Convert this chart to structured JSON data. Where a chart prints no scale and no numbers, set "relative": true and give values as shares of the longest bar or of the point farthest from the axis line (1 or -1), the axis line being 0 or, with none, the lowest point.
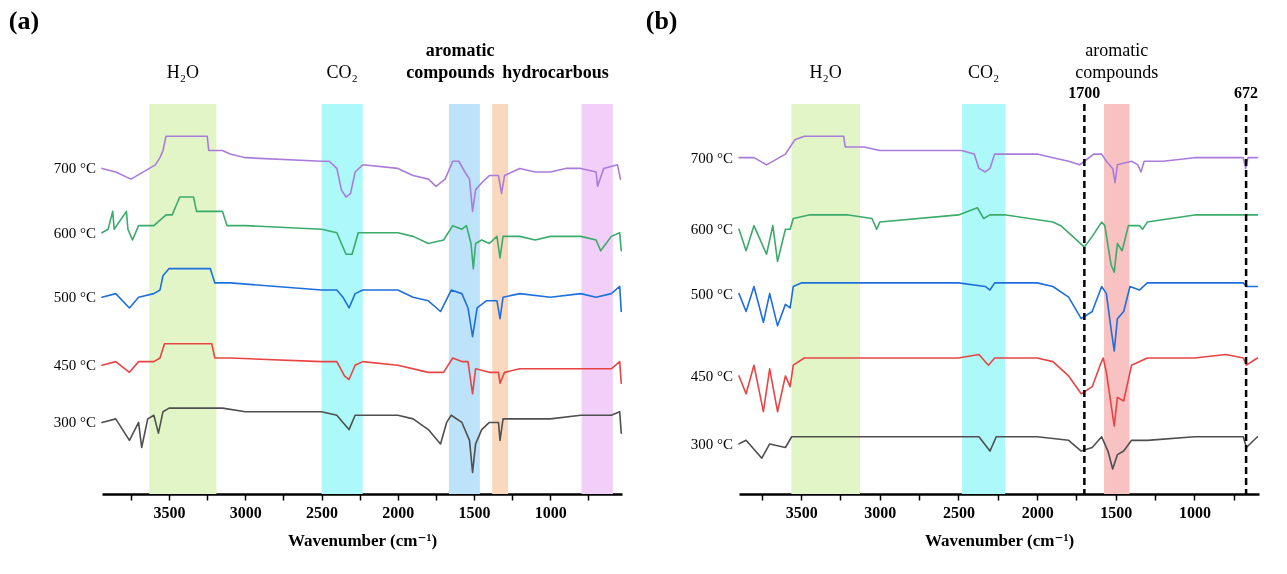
{
  "chart_data": [
    {
      "type": "line",
      "title": "(a)",
      "xlabel": "Wavenumber (cm⁻¹)",
      "relative": true,
      "xlim": [
        3940,
        530
      ],
      "xticks": [
        {
          "value": 3750,
          "label": null
        },
        3500,
        {
          "value": 3250,
          "label": null
        },
        3000,
        {
          "value": 2750,
          "label": null
        },
        2500,
        {
          "value": 2250,
          "label": null
        },
        2000,
        {
          "value": 1750,
          "label": null
        },
        1500,
        {
          "value": 1250,
          "label": null
        },
        1000,
        {
          "value": 750,
          "label": null
        }
      ],
      "bands": [
        {
          "axis": "x",
          "from": 3630,
          "to": 3190,
          "label": "H₂O",
          "color": "#e2f5c6"
        },
        {
          "axis": "x",
          "from": 2500,
          "to": 2230,
          "label": "CO₂",
          "color": "#adf9f9"
        },
        {
          "axis": "x",
          "from": 1665,
          "to": 1462,
          "label": "aromatic compounds",
          "color": "#bde3fa"
        },
        {
          "axis": "x",
          "from": 1381,
          "to": 1277,
          "label": "hydrocarbous",
          "color": "#f9d8be"
        },
        {
          "axis": "x",
          "from": 795,
          "to": 590,
          "color": "#f2cff9"
        }
      ],
      "series": [
        {
          "name": "700 °C",
          "color": "#a97cdc",
          "x": [
            3940,
            3850,
            3750,
            3590,
            3560,
            3540,
            3520,
            3480,
            3250,
            3240,
            3150,
            3100,
            3000,
            2500,
            2450,
            2400,
            2370,
            2340,
            2310,
            2280,
            2230,
            2000,
            1900,
            1800,
            1750,
            1690,
            1640,
            1600,
            1560,
            1530,
            1510,
            1490,
            1450,
            1400,
            1340,
            1320,
            1300,
            1200,
            1100,
            1000,
            900,
            800,
            700,
            690,
            650,
            560,
            540
          ],
          "values": [
            0.91,
            0.9,
            0.88,
            0.92,
            0.94,
            0.96,
            1.0,
            1.0,
            1.0,
            0.96,
            0.96,
            0.95,
            0.94,
            0.93,
            0.93,
            0.91,
            0.85,
            0.83,
            0.84,
            0.9,
            0.92,
            0.91,
            0.89,
            0.88,
            0.86,
            0.88,
            0.93,
            0.93,
            0.9,
            0.88,
            0.79,
            0.85,
            0.87,
            0.89,
            0.89,
            0.84,
            0.89,
            0.91,
            0.9,
            0.9,
            0.91,
            0.91,
            0.9,
            0.86,
            0.91,
            0.92,
            0.88
          ]
        },
        {
          "name": "600 °C",
          "color": "#3bab6b",
          "x": [
            3940,
            3900,
            3870,
            3860,
            3780,
            3770,
            3740,
            3700,
            3600,
            3520,
            3480,
            3430,
            3340,
            3320,
            3150,
            3120,
            3000,
            2500,
            2400,
            2370,
            2340,
            2300,
            2260,
            2220,
            2000,
            1900,
            1800,
            1700,
            1640,
            1580,
            1550,
            1520,
            1505,
            1490,
            1450,
            1400,
            1350,
            1330,
            1310,
            1200,
            1100,
            1000,
            800,
            700,
            670,
            600,
            545,
            535
          ],
          "values": [
            0.73,
            0.74,
            0.79,
            0.74,
            0.79,
            0.74,
            0.71,
            0.75,
            0.75,
            0.78,
            0.78,
            0.83,
            0.83,
            0.79,
            0.79,
            0.75,
            0.75,
            0.74,
            0.73,
            0.7,
            0.67,
            0.67,
            0.73,
            0.73,
            0.73,
            0.72,
            0.7,
            0.71,
            0.75,
            0.74,
            0.75,
            0.7,
            0.63,
            0.7,
            0.71,
            0.7,
            0.72,
            0.66,
            0.72,
            0.72,
            0.71,
            0.72,
            0.72,
            0.71,
            0.68,
            0.72,
            0.73,
            0.68
          ]
        },
        {
          "name": "500 °C",
          "color": "#1e6fdc",
          "x": [
            3940,
            3850,
            3760,
            3700,
            3600,
            3560,
            3540,
            3500,
            3460,
            3230,
            3200,
            3100,
            2500,
            2400,
            2360,
            2320,
            2280,
            2230,
            2000,
            1900,
            1800,
            1720,
            1650,
            1580,
            1540,
            1510,
            1480,
            1420,
            1350,
            1330,
            1310,
            1200,
            1000,
            800,
            700,
            600,
            545,
            535
          ],
          "values": [
            0.55,
            0.56,
            0.52,
            0.55,
            0.56,
            0.57,
            0.61,
            0.63,
            0.63,
            0.63,
            0.59,
            0.59,
            0.57,
            0.57,
            0.55,
            0.52,
            0.56,
            0.57,
            0.57,
            0.55,
            0.54,
            0.51,
            0.57,
            0.56,
            0.52,
            0.44,
            0.52,
            0.54,
            0.54,
            0.49,
            0.55,
            0.56,
            0.55,
            0.56,
            0.55,
            0.56,
            0.58,
            0.51
          ]
        },
        {
          "name": "450 °C",
          "color": "#e84444",
          "x": [
            3940,
            3850,
            3760,
            3700,
            3600,
            3560,
            3530,
            3480,
            3220,
            3200,
            3100,
            2500,
            2400,
            2350,
            2320,
            2280,
            2230,
            2000,
            1800,
            1700,
            1640,
            1580,
            1540,
            1510,
            1490,
            1400,
            1340,
            1330,
            1300,
            1200,
            1000,
            800,
            700,
            600,
            545,
            535
          ],
          "values": [
            0.36,
            0.37,
            0.34,
            0.37,
            0.37,
            0.38,
            0.42,
            0.42,
            0.42,
            0.38,
            0.38,
            0.37,
            0.37,
            0.33,
            0.32,
            0.36,
            0.37,
            0.36,
            0.34,
            0.34,
            0.38,
            0.37,
            0.37,
            0.28,
            0.35,
            0.34,
            0.34,
            0.31,
            0.34,
            0.35,
            0.35,
            0.35,
            0.35,
            0.35,
            0.37,
            0.31
          ]
        },
        {
          "name": "300 °C",
          "color": "#4f4f4f",
          "x": [
            3940,
            3850,
            3760,
            3700,
            3680,
            3640,
            3600,
            3570,
            3540,
            3500,
            3200,
            3150,
            3000,
            2500,
            2400,
            2360,
            2320,
            2280,
            2230,
            2000,
            1900,
            1800,
            1720,
            1680,
            1650,
            1580,
            1530,
            1510,
            1490,
            1450,
            1400,
            1340,
            1330,
            1310,
            1200,
            1000,
            800,
            700,
            600,
            545,
            535
          ],
          "values": [
            0.2,
            0.21,
            0.15,
            0.2,
            0.13,
            0.21,
            0.22,
            0.17,
            0.23,
            0.24,
            0.24,
            0.24,
            0.23,
            0.23,
            0.22,
            0.2,
            0.18,
            0.22,
            0.22,
            0.22,
            0.21,
            0.18,
            0.14,
            0.2,
            0.22,
            0.2,
            0.15,
            0.06,
            0.14,
            0.18,
            0.2,
            0.2,
            0.15,
            0.21,
            0.21,
            0.21,
            0.22,
            0.22,
            0.22,
            0.23,
            0.17
          ]
        }
      ]
    },
    {
      "type": "line",
      "title": "(b)",
      "xlabel": "Wavenumber (cm⁻¹)",
      "relative": true,
      "xlim": [
        3895,
        590
      ],
      "xticks": [
        {
          "value": 3750,
          "label": null
        },
        3500,
        {
          "value": 3250,
          "label": null
        },
        3000,
        {
          "value": 2750,
          "label": null
        },
        2500,
        {
          "value": 2250,
          "label": null
        },
        2000,
        {
          "value": 1750,
          "label": null
        },
        1500,
        {
          "value": 1250,
          "label": null
        },
        1000,
        {
          "value": 750,
          "label": null
        }
      ],
      "bands": [
        {
          "axis": "x",
          "from": 3562,
          "to": 3126,
          "label": "H₂O",
          "color": "#e2f5c6"
        },
        {
          "axis": "x",
          "from": 2477,
          "to": 2203,
          "label": "CO₂",
          "color": "#adf9f9"
        },
        {
          "axis": "x",
          "from": 1575,
          "to": 1413,
          "label": "aromatic compounds",
          "color": "#f8c2c2"
        }
      ],
      "ref_lines": [
        {
          "axis": "x",
          "value": 1700,
          "label": "1700",
          "color": "#000000",
          "line_style": "dashed"
        },
        {
          "axis": "x",
          "value": 672,
          "label": "672",
          "color": "#000000",
          "line_style": "dashed"
        }
      ],
      "series": [
        {
          "name": "700 °C",
          "color": "#a97cdc",
          "x": [
            3895,
            3800,
            3720,
            3600,
            3570,
            3540,
            3480,
            3230,
            3220,
            3130,
            3100,
            3000,
            2700,
            2480,
            2400,
            2370,
            2330,
            2300,
            2270,
            2200,
            2000,
            1900,
            1800,
            1730,
            1700,
            1640,
            1590,
            1560,
            1520,
            1505,
            1490,
            1400,
            1360,
            1340,
            1320,
            1200,
            1000,
            800,
            690,
            675,
            660,
            600
          ],
          "values": [
            0.94,
            0.94,
            0.92,
            0.95,
            0.97,
            0.99,
            1.0,
            1.0,
            0.97,
            0.97,
            0.97,
            0.96,
            0.96,
            0.96,
            0.95,
            0.91,
            0.9,
            0.91,
            0.95,
            0.95,
            0.95,
            0.94,
            0.93,
            0.92,
            0.93,
            0.95,
            0.95,
            0.93,
            0.91,
            0.87,
            0.92,
            0.93,
            0.92,
            0.9,
            0.93,
            0.93,
            0.94,
            0.94,
            0.94,
            0.91,
            0.94,
            0.94
          ]
        },
        {
          "name": "600 °C",
          "color": "#3bab6b",
          "x": [
            3895,
            3850,
            3800,
            3720,
            3680,
            3650,
            3600,
            3570,
            3550,
            3450,
            3200,
            3050,
            3020,
            3000,
            2500,
            2380,
            2340,
            2300,
            2200,
            1900,
            1850,
            1750,
            1700,
            1650,
            1590,
            1570,
            1530,
            1510,
            1490,
            1460,
            1420,
            1350,
            1330,
            1300,
            1000,
            800,
            690,
            600
          ],
          "values": [
            0.74,
            0.68,
            0.75,
            0.67,
            0.75,
            0.65,
            0.74,
            0.74,
            0.77,
            0.78,
            0.78,
            0.77,
            0.74,
            0.76,
            0.78,
            0.8,
            0.77,
            0.78,
            0.78,
            0.76,
            0.75,
            0.71,
            0.69,
            0.72,
            0.76,
            0.75,
            0.64,
            0.62,
            0.7,
            0.68,
            0.75,
            0.75,
            0.74,
            0.76,
            0.78,
            0.78,
            0.78,
            0.78
          ]
        },
        {
          "name": "500 °C",
          "color": "#1e6fdc",
          "x": [
            3895,
            3850,
            3800,
            3740,
            3700,
            3650,
            3600,
            3570,
            3550,
            3500,
            3200,
            2500,
            2330,
            2300,
            2270,
            2000,
            1900,
            1800,
            1720,
            1650,
            1590,
            1560,
            1530,
            1510,
            1490,
            1450,
            1410,
            1350,
            1300,
            1000,
            800,
            690,
            670,
            600
          ],
          "values": [
            0.56,
            0.51,
            0.58,
            0.48,
            0.56,
            0.47,
            0.53,
            0.52,
            0.58,
            0.59,
            0.59,
            0.59,
            0.58,
            0.57,
            0.59,
            0.59,
            0.58,
            0.55,
            0.49,
            0.51,
            0.58,
            0.56,
            0.46,
            0.4,
            0.49,
            0.51,
            0.58,
            0.57,
            0.59,
            0.59,
            0.59,
            0.59,
            0.58,
            0.58
          ]
        },
        {
          "name": "450 °C",
          "color": "#e84444",
          "x": [
            3895,
            3850,
            3800,
            3740,
            3700,
            3650,
            3600,
            3570,
            3550,
            3480,
            3300,
            3200,
            2500,
            2370,
            2310,
            2270,
            2000,
            1900,
            1800,
            1720,
            1650,
            1600,
            1580,
            1560,
            1530,
            1510,
            1490,
            1450,
            1400,
            1300,
            1000,
            800,
            690,
            670,
            600
          ],
          "values": [
            0.33,
            0.28,
            0.36,
            0.23,
            0.35,
            0.23,
            0.33,
            0.3,
            0.36,
            0.38,
            0.38,
            0.38,
            0.38,
            0.39,
            0.36,
            0.38,
            0.38,
            0.37,
            0.33,
            0.28,
            0.3,
            0.36,
            0.38,
            0.34,
            0.25,
            0.19,
            0.27,
            0.26,
            0.36,
            0.38,
            0.38,
            0.39,
            0.38,
            0.36,
            0.38
          ]
        },
        {
          "name": "300 °C",
          "color": "#4f4f4f",
          "x": [
            3895,
            3850,
            3750,
            3700,
            3600,
            3560,
            3500,
            3200,
            2500,
            2370,
            2300,
            2260,
            2000,
            1800,
            1720,
            1650,
            1590,
            1550,
            1520,
            1490,
            1450,
            1400,
            1300,
            1000,
            800,
            690,
            670,
            600
          ],
          "values": [
            0.14,
            0.15,
            0.1,
            0.14,
            0.13,
            0.16,
            0.16,
            0.16,
            0.16,
            0.16,
            0.12,
            0.16,
            0.16,
            0.15,
            0.12,
            0.13,
            0.16,
            0.12,
            0.07,
            0.11,
            0.12,
            0.15,
            0.15,
            0.16,
            0.16,
            0.16,
            0.13,
            0.16
          ]
        }
      ]
    }
  ]
}
